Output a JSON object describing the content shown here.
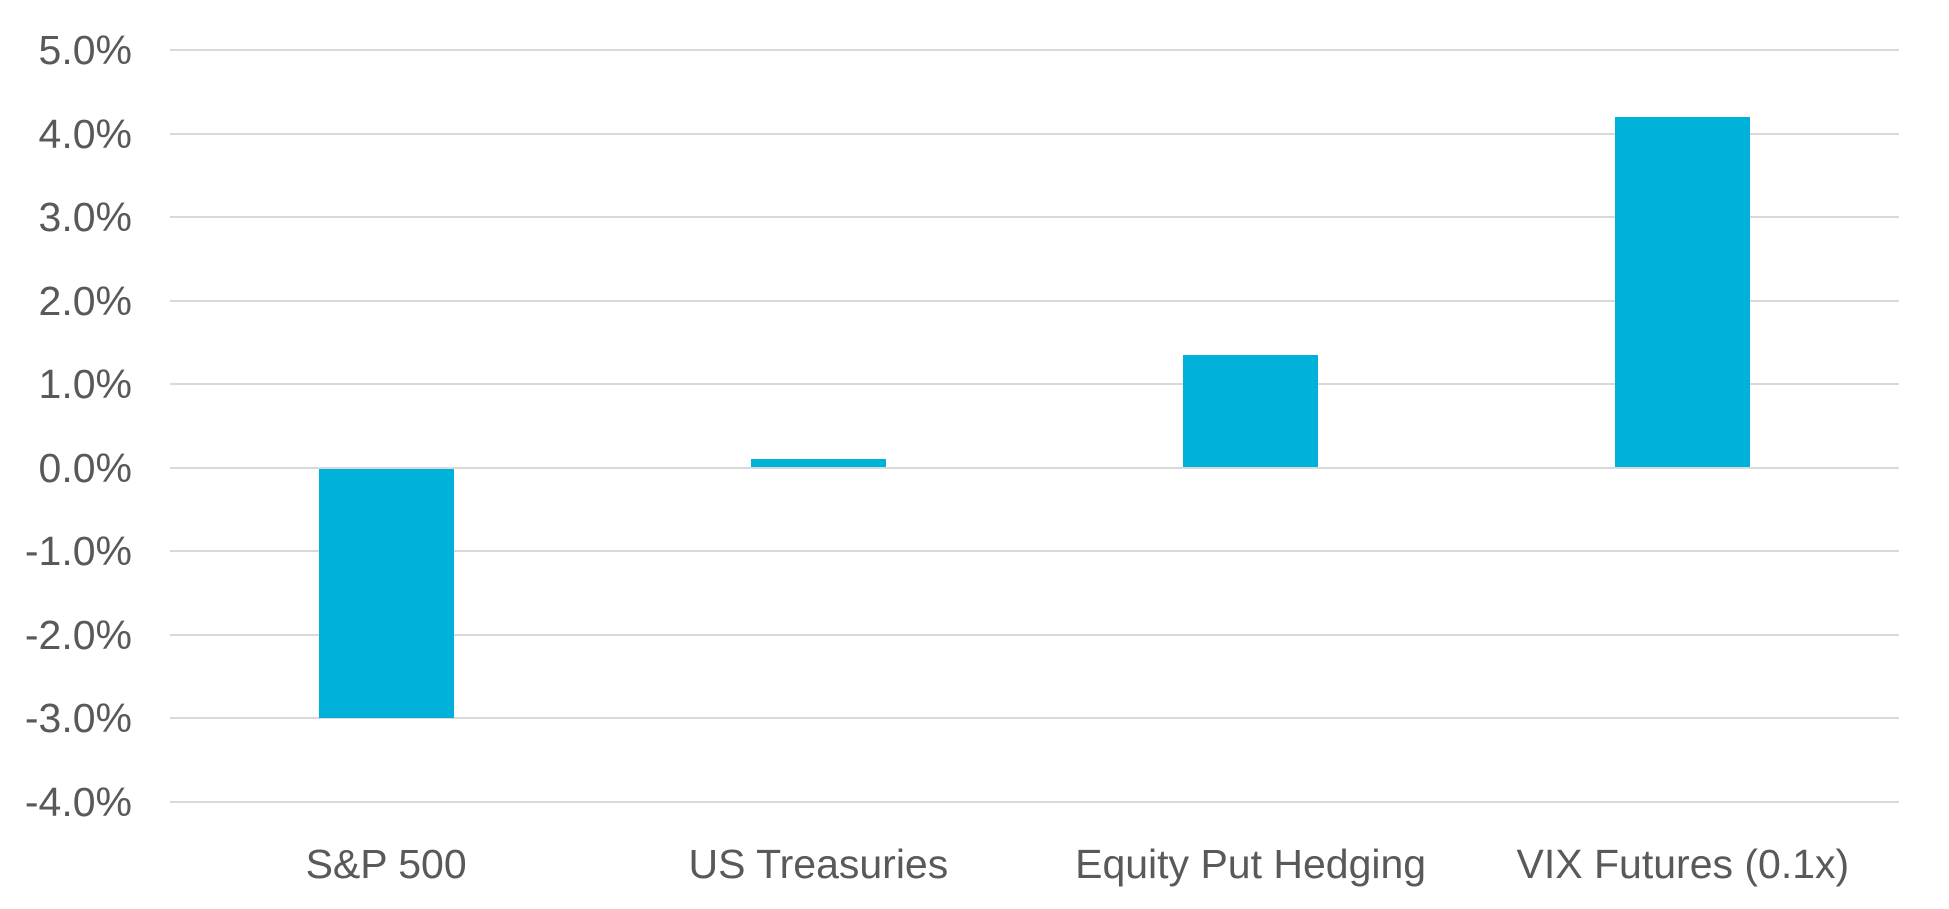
{
  "chart_data": {
    "type": "bar",
    "title": "",
    "xlabel": "",
    "ylabel": "",
    "categories": [
      "S&P 500",
      "US Treasuries",
      "Equity Put Hedging",
      "VIX Futures (0.1x)"
    ],
    "values": [
      -3.0,
      0.1,
      1.35,
      4.2
    ],
    "value_format": "percent",
    "ylim": [
      -4.0,
      5.0
    ],
    "ytick_values": [
      5.0,
      4.0,
      3.0,
      2.0,
      1.0,
      0.0,
      -1.0,
      -2.0,
      -3.0,
      -4.0
    ],
    "ytick_labels": [
      "5.0%",
      "4.0%",
      "3.0%",
      "2.0%",
      "1.0%",
      "0.0%",
      "-1.0%",
      "-2.0%",
      "-3.0%",
      "-4.0%"
    ],
    "grid": "horizontal",
    "legend_position": "none",
    "colors": {
      "bar": "#00B2DA",
      "gridline": "#D9D9D9",
      "tick_text": "#595959",
      "background": "#FFFFFF"
    }
  }
}
